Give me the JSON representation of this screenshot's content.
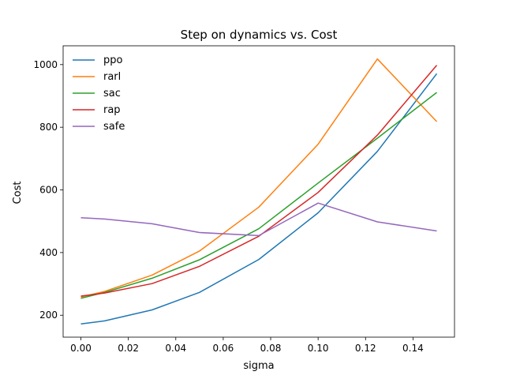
{
  "chart_data": {
    "type": "line",
    "title": "Step on dynamics vs. Cost",
    "xlabel": "sigma",
    "ylabel": "Cost",
    "xlim": [
      -0.0075,
      0.1575
    ],
    "ylim": [
      130,
      1060
    ],
    "xticks": [
      0.0,
      0.02,
      0.04,
      0.06,
      0.08,
      0.1,
      0.12,
      0.14
    ],
    "xtick_labels": [
      "0.00",
      "0.02",
      "0.04",
      "0.06",
      "0.08",
      "0.10",
      "0.12",
      "0.14"
    ],
    "yticks": [
      200,
      400,
      600,
      800,
      1000
    ],
    "ytick_labels": [
      "200",
      "400",
      "600",
      "800",
      "1000"
    ],
    "grid": false,
    "legend_position": "top-left",
    "x": [
      0.0,
      0.01,
      0.03,
      0.05,
      0.075,
      0.1,
      0.125,
      0.15
    ],
    "series": [
      {
        "name": "ppo",
        "color": "#1f77b4",
        "values": [
          172,
          182,
          217,
          273,
          378,
          527,
          723,
          971
        ]
      },
      {
        "name": "rarl",
        "color": "#ff7f0e",
        "values": [
          258,
          276,
          328,
          405,
          545,
          746,
          1018,
          818
        ]
      },
      {
        "name": "sac",
        "color": "#2ca02c",
        "values": [
          254,
          273,
          318,
          377,
          476,
          622,
          765,
          911
        ]
      },
      {
        "name": "rap",
        "color": "#d62728",
        "values": [
          261,
          271,
          301,
          356,
          452,
          592,
          775,
          998
        ]
      },
      {
        "name": "safe",
        "color": "#9467bd",
        "values": [
          511,
          507,
          492,
          464,
          454,
          558,
          498,
          469
        ]
      }
    ]
  }
}
